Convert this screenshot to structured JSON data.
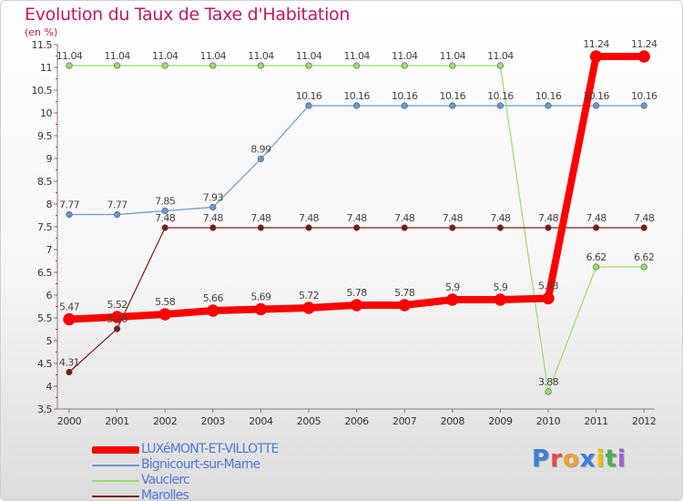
{
  "chart_data": {
    "type": "line",
    "title": "Evolution du Taux de Taxe d'Habitation",
    "subtitle": "(en %)",
    "x": [
      "2000",
      "2001",
      "2002",
      "2003",
      "2004",
      "2005",
      "2006",
      "2007",
      "2008",
      "2009",
      "2010",
      "2011",
      "2012"
    ],
    "y_ticks": [
      "3.5",
      "4",
      "4.5",
      "5",
      "5.5",
      "6",
      "6.5",
      "7",
      "7.5",
      "8",
      "8.5",
      "9",
      "9.5",
      "10",
      "10.5",
      "11",
      "11.5"
    ],
    "ylim": [
      3.5,
      11.5
    ],
    "grid": false,
    "legend_position": "bottom-left",
    "series": [
      {
        "name": "LUXéMONT-ET-VILLOTTE",
        "color": "#ff0000",
        "emphasis": true,
        "values": [
          5.47,
          5.52,
          5.58,
          5.66,
          5.69,
          5.72,
          5.78,
          5.78,
          5.9,
          5.9,
          5.93,
          11.24,
          11.24
        ],
        "labels": [
          "5.47",
          "5.52",
          "5.58",
          "5.66",
          "5.69",
          "5.72",
          "5.78",
          "5.78",
          "5.9",
          "5.9",
          "5.93",
          "11.24",
          "11.24"
        ]
      },
      {
        "name": "Bignicourt-sur-Marne",
        "color": "#6699cc",
        "emphasis": false,
        "values": [
          7.77,
          7.77,
          7.85,
          7.93,
          8.99,
          10.16,
          10.16,
          10.16,
          10.16,
          10.16,
          10.16,
          10.16,
          10.16
        ],
        "labels": [
          "7.77",
          "7.77",
          "7.85",
          "7.93",
          "8.99",
          "10.16",
          "10.16",
          "10.16",
          "10.16",
          "10.16",
          "10.16",
          "10.16",
          "10.16"
        ]
      },
      {
        "name": "Vauclerc",
        "color": "#99dd66",
        "emphasis": false,
        "values": [
          11.04,
          11.04,
          11.04,
          11.04,
          11.04,
          11.04,
          11.04,
          11.04,
          11.04,
          11.04,
          3.88,
          6.62,
          6.62
        ],
        "labels": [
          "11.04",
          "11.04",
          "11.04",
          "11.04",
          "11.04",
          "11.04",
          "11.04",
          "11.04",
          "11.04",
          "11.04",
          "3.88",
          "6.62",
          "6.62"
        ]
      },
      {
        "name": "Marolles",
        "color": "#7a1a1a",
        "emphasis": false,
        "values": [
          4.31,
          5.26,
          7.48,
          7.48,
          7.48,
          7.48,
          7.48,
          7.48,
          7.48,
          7.48,
          7.48,
          7.48,
          7.48
        ],
        "labels": [
          "4.31",
          "5.26",
          "7.48",
          "7.48",
          "7.48",
          "7.48",
          "7.48",
          "7.48",
          "7.48",
          "7.48",
          "7.48",
          "7.48",
          "7.48"
        ]
      }
    ]
  },
  "logo": {
    "letters": [
      "P",
      "r",
      "o",
      "x",
      "i",
      "t",
      "i"
    ],
    "colors": [
      "#3b7fd9",
      "#e64a4a",
      "#f0a030",
      "#3b7fd9",
      "#f0c000",
      "#4caf50",
      "#9c5fd6"
    ]
  }
}
